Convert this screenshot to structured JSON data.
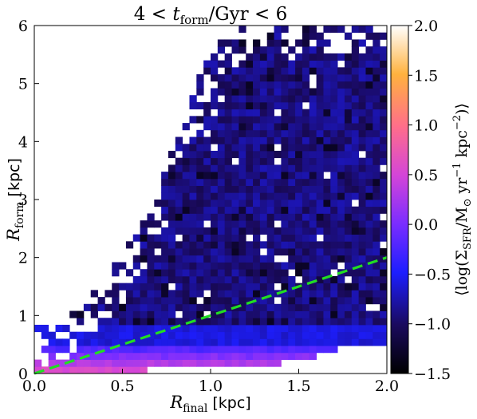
{
  "chart_data": {
    "type": "heatmap",
    "title": "4 < t_form/Gyr < 6",
    "title_parts": {
      "pre": "4 < ",
      "var": "t",
      "sub": "form",
      "post": "/Gyr < 6"
    },
    "xlabel": "R_final [kpc]",
    "xlabel_parts": {
      "var": "R",
      "sub": "final",
      "unit": " [kpc]"
    },
    "ylabel": "R_form [kpc]",
    "ylabel_parts": {
      "var": "R",
      "sub": "form",
      "unit": " [kpc]"
    },
    "xlim": [
      0.0,
      2.0
    ],
    "ylim": [
      0,
      6
    ],
    "x_ticks": [
      "0.0",
      "0.5",
      "1.0",
      "1.5",
      "2.0"
    ],
    "x_tick_values": [
      0.0,
      0.5,
      1.0,
      1.5,
      2.0
    ],
    "y_ticks": [
      "0",
      "1",
      "2",
      "3",
      "4",
      "5",
      "6"
    ],
    "y_tick_values": [
      0,
      1,
      2,
      3,
      4,
      5,
      6
    ],
    "bins": {
      "nx": 50,
      "ny": 50
    },
    "colormap": "gnuplot2",
    "colorbar": {
      "label": "⟨log(Σ_SFR/M⊙ yr^-1 kpc^-2)⟩",
      "label_parts": {
        "open": "⟨log(Σ",
        "sub": "SFR",
        "mid": "/M",
        "sun_sub": "⊙",
        "yr": " yr",
        "sup1": "−1",
        "kpc": " kpc",
        "sup2": "−2",
        "close": ")⟩"
      },
      "min": -1.5,
      "max": 2.0,
      "ticks": [
        "−1.5",
        "−1.0",
        "−0.5",
        "0.0",
        "0.5",
        "1.0",
        "1.5",
        "2.0"
      ],
      "tick_values": [
        -1.5,
        -1.0,
        -0.5,
        0.0,
        0.5,
        1.0,
        1.5,
        2.0
      ]
    },
    "reference_line": {
      "style": "dashed",
      "color": "#22dd22",
      "x": [
        0.0,
        2.0
      ],
      "y": [
        0.0,
        2.0
      ]
    },
    "value_bands": [
      {
        "rform_range": [
          0.0,
          0.12
        ],
        "rfinal_max": 0.64,
        "mean_log_sfr": 0.55
      },
      {
        "rform_range": [
          0.12,
          0.24
        ],
        "rfinal_max": 1.4,
        "mean_log_sfr": 0.3
      },
      {
        "rform_range": [
          0.24,
          0.36
        ],
        "rfinal_max": 1.6,
        "mean_log_sfr": 0.05
      },
      {
        "rform_range": [
          0.36,
          0.48
        ],
        "rfinal_max": 1.72,
        "mean_log_sfr": -0.2
      },
      {
        "rform_range": [
          0.48,
          0.84
        ],
        "rfinal_max": 2.0,
        "mean_log_sfr": -0.6
      },
      {
        "rform_range": [
          0.84,
          6.0
        ],
        "rfinal_max": 2.0,
        "mean_log_sfr": -0.9
      }
    ],
    "upper_envelope": [
      {
        "rfinal": 0.0,
        "rform": 0.45
      },
      {
        "rfinal": 0.2,
        "rform": 0.8
      },
      {
        "rfinal": 0.4,
        "rform": 1.3
      },
      {
        "rfinal": 0.6,
        "rform": 2.2
      },
      {
        "rfinal": 0.75,
        "rform": 3.3
      },
      {
        "rfinal": 0.9,
        "rform": 4.6
      },
      {
        "rfinal": 1.05,
        "rform": 5.6
      },
      {
        "rfinal": 1.2,
        "rform": 6.0
      },
      {
        "rfinal": 2.0,
        "rform": 6.0
      }
    ]
  }
}
